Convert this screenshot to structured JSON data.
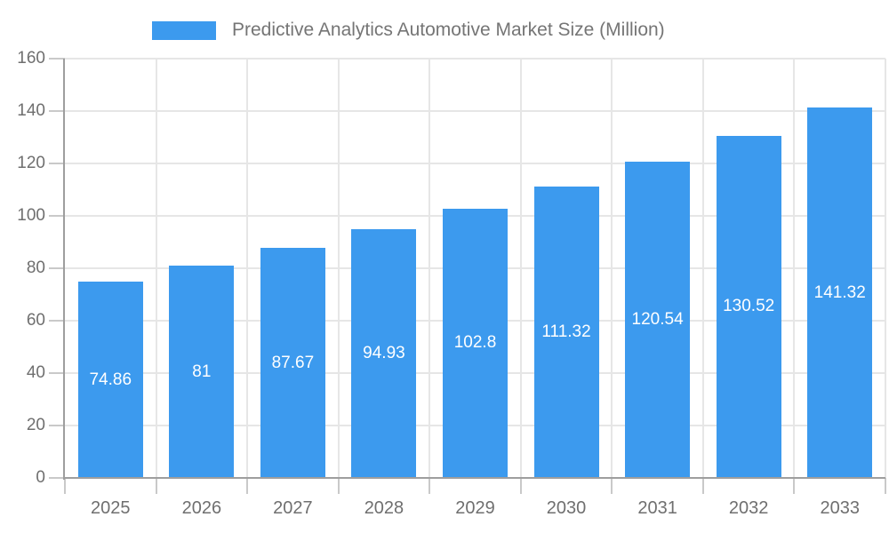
{
  "legend": {
    "label": "Predictive Analytics Automotive Market Size (Million)"
  },
  "chart_data": {
    "type": "bar",
    "title": "Predictive Analytics Automotive Market Size (Million)",
    "categories": [
      "2025",
      "2026",
      "2027",
      "2028",
      "2029",
      "2030",
      "2031",
      "2032",
      "2033"
    ],
    "values": [
      74.86,
      81,
      87.67,
      94.93,
      102.8,
      111.32,
      120.54,
      130.52,
      141.32
    ],
    "value_labels": [
      "74.86",
      "81",
      "87.67",
      "94.93",
      "102.8",
      "111.32",
      "120.54",
      "130.52",
      "141.32"
    ],
    "xlabel": "",
    "ylabel": "",
    "ylim": [
      0,
      160
    ],
    "ytick_step": 20,
    "ytick_labels": [
      "0",
      "20",
      "40",
      "60",
      "80",
      "100",
      "120",
      "140",
      "160"
    ],
    "grid": "on",
    "legend_position": "top-center",
    "value_label_position": "inside-middle",
    "colors": {
      "bar": "#3C9AEE",
      "grid": "#e6e6e6",
      "axis": "#9e9e9e",
      "tick": "#c9c9c9",
      "axis_text": "#6f6f6f",
      "legend_text": "#757575",
      "value_text": "#ffffff",
      "background": "#ffffff"
    }
  }
}
